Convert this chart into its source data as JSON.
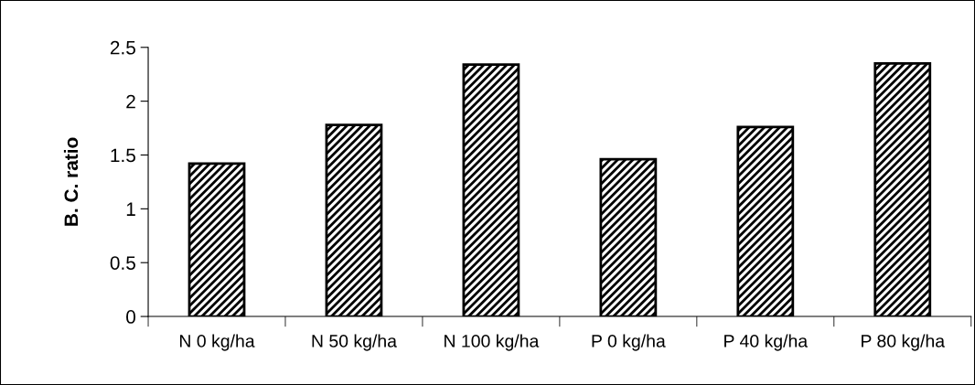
{
  "chart_data": {
    "type": "bar",
    "ylabel": "B. C. ratio",
    "categories": [
      "N 0 kg/ha",
      "N 50 kg/ha",
      "N 100 kg/ha",
      "P 0 kg/ha",
      "P 40 kg/ha",
      "P 80 kg/ha"
    ],
    "values": [
      1.42,
      1.78,
      2.34,
      1.46,
      1.76,
      2.35
    ],
    "color": "#000000",
    "ylim": [
      0,
      2.5
    ],
    "yticks": [
      0,
      0.5,
      1,
      1.5,
      2,
      2.5
    ],
    "grid": false
  }
}
